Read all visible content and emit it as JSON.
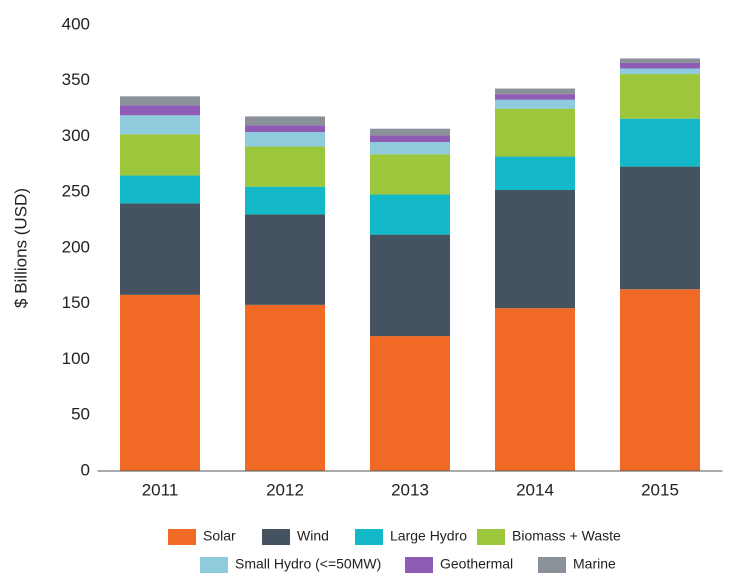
{
  "chart_data": {
    "type": "stacked_bar",
    "y_label": "$ Billions (USD)",
    "categories": [
      "2011",
      "2012",
      "2013",
      "2014",
      "2015"
    ],
    "series": [
      {
        "name": "Solar",
        "color": "#f06a25",
        "values": [
          158,
          149,
          121,
          146,
          163
        ]
      },
      {
        "name": "Wind",
        "color": "#44535f",
        "values": [
          82,
          81,
          91,
          106,
          110
        ]
      },
      {
        "name": "Large Hydro",
        "color": "#14b9c8",
        "values": [
          25,
          25,
          36,
          30,
          43
        ]
      },
      {
        "name": "Biomass + Waste",
        "color": "#9cc63b",
        "values": [
          37,
          36,
          36,
          43,
          40
        ]
      },
      {
        "name": "Small Hydro (<=50MW)",
        "color": "#8ecbdc",
        "values": [
          17,
          13,
          11,
          8,
          5
        ]
      },
      {
        "name": "Geothermal",
        "color": "#8e5bb5",
        "values": [
          9,
          6,
          6,
          5,
          5
        ]
      },
      {
        "name": "Marine",
        "color": "#8a9199",
        "values": [
          8,
          8,
          6,
          5,
          4
        ]
      }
    ],
    "ylim": [
      0,
      400
    ],
    "yticks": [
      0,
      50,
      100,
      150,
      200,
      250,
      300,
      350,
      400
    ],
    "grid": false
  }
}
